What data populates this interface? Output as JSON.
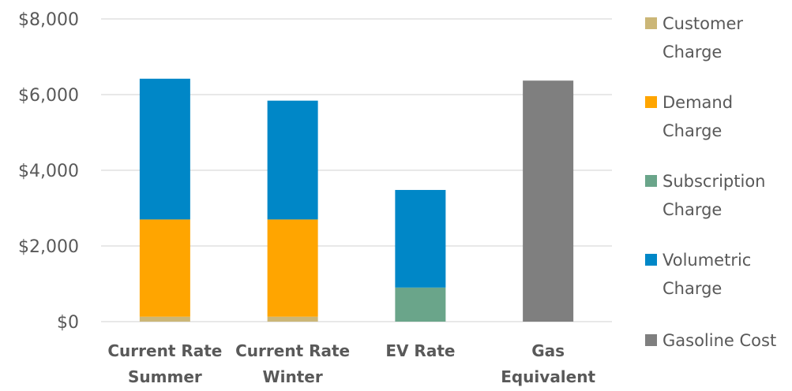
{
  "chart_data": {
    "type": "bar",
    "stacked": true,
    "title": "",
    "xlabel": "",
    "ylabel": "",
    "ylim": [
      0,
      8000
    ],
    "yticks": [
      0,
      2000,
      4000,
      6000,
      8000
    ],
    "ytick_labels": [
      "$0",
      "$2,000",
      "$4,000",
      "$6,000",
      "$8,000"
    ],
    "grid": true,
    "legend_position": "right",
    "categories": [
      [
        "Current Rate",
        "Summer"
      ],
      [
        "Current Rate",
        "Winter"
      ],
      [
        "EV Rate"
      ],
      [
        "Gas",
        "Equivalent"
      ]
    ],
    "series": [
      {
        "name": "Customer Charge",
        "name_lines": [
          "Customer",
          "Charge"
        ],
        "color": "#cbb677",
        "values": [
          130,
          130,
          0,
          0
        ]
      },
      {
        "name": "Demand Charge",
        "name_lines": [
          "Demand",
          "Charge"
        ],
        "color": "#ffa500",
        "values": [
          2570,
          2570,
          0,
          0
        ]
      },
      {
        "name": "Subscription Charge",
        "name_lines": [
          "Subscription",
          "Charge"
        ],
        "color": "#6aa58a",
        "values": [
          0,
          0,
          900,
          0
        ]
      },
      {
        "name": "Volumetric Charge",
        "name_lines": [
          "Volumetric",
          "Charge"
        ],
        "color": "#0087c7",
        "values": [
          3720,
          3140,
          2580,
          0
        ]
      },
      {
        "name": "Gasoline Cost",
        "name_lines": [
          "Gasoline Cost"
        ],
        "color": "#7f7f7f",
        "values": [
          0,
          0,
          0,
          6370
        ]
      }
    ]
  }
}
